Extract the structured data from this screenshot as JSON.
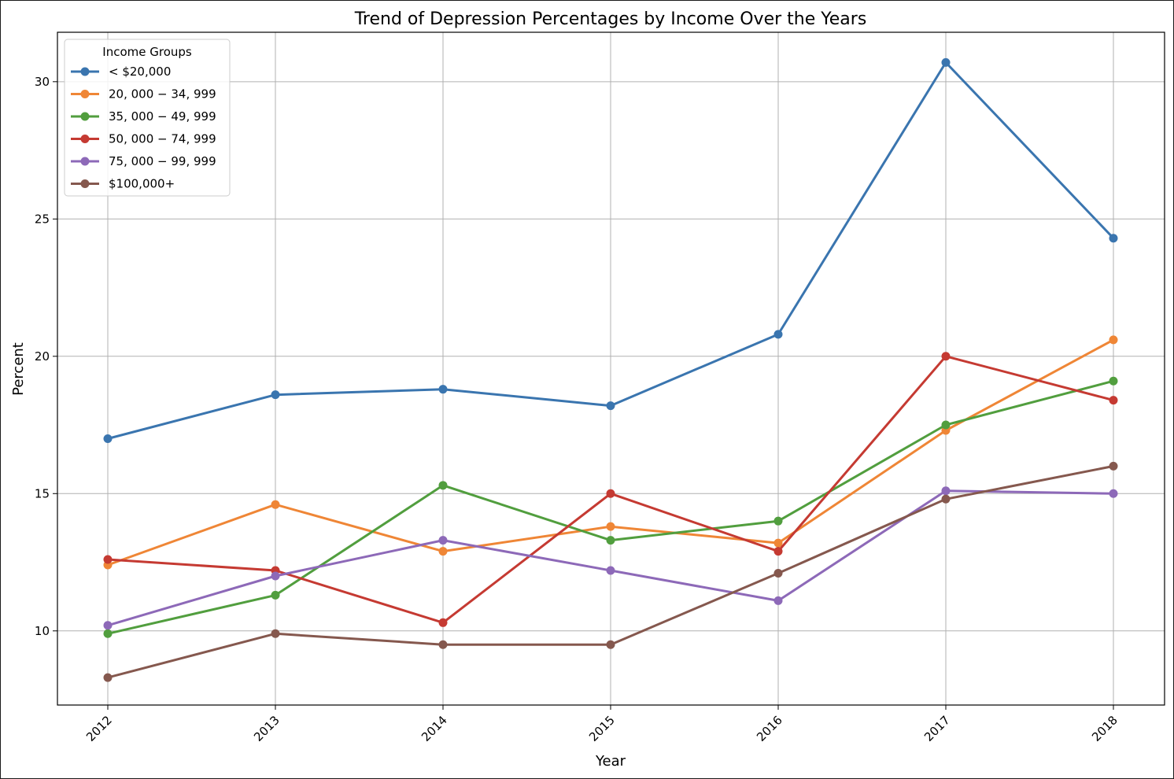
{
  "chart_data": {
    "type": "line",
    "title": "Trend of Depression Percentages by Income Over the Years",
    "xlabel": "Year",
    "ylabel": "Percent",
    "x": [
      "2012",
      "2013",
      "2014",
      "2015",
      "2016",
      "2017",
      "2018"
    ],
    "y_ticks": [
      "10",
      "15",
      "20",
      "25",
      "30"
    ],
    "ylim": [
      7.3,
      31.8
    ],
    "grid": true,
    "x_tick_rotation": 45,
    "legend": {
      "title": "Income Groups",
      "placement": "upper-left"
    },
    "series": [
      {
        "name": "< $20,000",
        "color": "#3a75af",
        "values": [
          17.0,
          18.6,
          18.8,
          18.2,
          20.8,
          30.7,
          24.3
        ]
      },
      {
        "name": "20, 000 − 34, 999",
        "color": "#ef8636",
        "values": [
          12.4,
          14.6,
          12.9,
          13.8,
          13.2,
          17.3,
          20.6
        ]
      },
      {
        "name": "35, 000 − 49, 999",
        "color": "#519e3e",
        "values": [
          9.9,
          11.3,
          15.3,
          13.3,
          14.0,
          17.5,
          19.1
        ]
      },
      {
        "name": "50, 000 − 74, 999",
        "color": "#c53a32",
        "values": [
          12.6,
          12.2,
          10.3,
          15.0,
          12.9,
          20.0,
          18.4
        ]
      },
      {
        "name": "75, 000 − 99, 999",
        "color": "#8d69b8",
        "values": [
          10.2,
          12.0,
          13.3,
          12.2,
          11.1,
          15.1,
          15.0
        ]
      },
      {
        "name": "$100,000+",
        "color": "#85584e",
        "values": [
          8.3,
          9.9,
          9.5,
          9.5,
          12.1,
          14.8,
          16.0
        ]
      }
    ]
  }
}
